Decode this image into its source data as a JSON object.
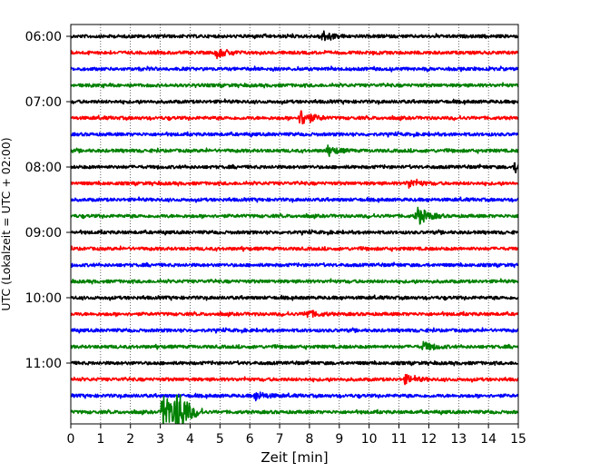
{
  "chart_data": {
    "type": "line",
    "title": "",
    "xlabel": "Zeit  [min]",
    "ylabel": "UTC (Lokalzeit = UTC + 02:00)",
    "xlim": [
      0,
      15
    ],
    "x_ticks": [
      "0",
      "1",
      "2",
      "3",
      "4",
      "5",
      "6",
      "7",
      "8",
      "9",
      "10",
      "11",
      "12",
      "13",
      "14",
      "15"
    ],
    "y_ticks": [
      "06:00",
      "07:00",
      "08:00",
      "09:00",
      "10:00",
      "11:00"
    ],
    "grid": "vertical dotted lines at each minute",
    "colors": [
      "#000000",
      "#ff0000",
      "#0000ff",
      "#008000"
    ],
    "trace_interval_minutes": 15,
    "series": [
      {
        "start": "06:00",
        "color": "#000000",
        "events": [
          {
            "t": 8.4,
            "amp": 1.8
          }
        ]
      },
      {
        "start": "06:15",
        "color": "#ff0000",
        "events": [
          {
            "t": 4.9,
            "amp": 1.6
          }
        ]
      },
      {
        "start": "06:30",
        "color": "#0000ff",
        "events": []
      },
      {
        "start": "06:45",
        "color": "#008000",
        "events": []
      },
      {
        "start": "07:00",
        "color": "#000000",
        "events": []
      },
      {
        "start": "07:15",
        "color": "#ff0000",
        "events": [
          {
            "t": 7.7,
            "amp": 3.2
          }
        ]
      },
      {
        "start": "07:30",
        "color": "#0000ff",
        "events": []
      },
      {
        "start": "07:45",
        "color": "#008000",
        "events": [
          {
            "t": 8.6,
            "amp": 1.5
          }
        ]
      },
      {
        "start": "08:00",
        "color": "#000000",
        "events": [
          {
            "t": 14.9,
            "amp": 2.5
          }
        ]
      },
      {
        "start": "08:15",
        "color": "#ff0000",
        "events": [
          {
            "t": 11.3,
            "amp": 1.5
          }
        ]
      },
      {
        "start": "08:30",
        "color": "#0000ff",
        "events": []
      },
      {
        "start": "08:45",
        "color": "#008000",
        "events": [
          {
            "t": 11.6,
            "amp": 3.5
          }
        ]
      },
      {
        "start": "09:00",
        "color": "#000000",
        "events": []
      },
      {
        "start": "09:15",
        "color": "#ff0000",
        "events": []
      },
      {
        "start": "09:30",
        "color": "#0000ff",
        "events": []
      },
      {
        "start": "09:45",
        "color": "#008000",
        "events": []
      },
      {
        "start": "10:00",
        "color": "#000000",
        "events": []
      },
      {
        "start": "10:15",
        "color": "#ff0000",
        "events": [
          {
            "t": 7.9,
            "amp": 1.4
          }
        ]
      },
      {
        "start": "10:30",
        "color": "#0000ff",
        "events": []
      },
      {
        "start": "10:45",
        "color": "#008000",
        "events": [
          {
            "t": 11.8,
            "amp": 1.6
          }
        ]
      },
      {
        "start": "11:00",
        "color": "#000000",
        "events": []
      },
      {
        "start": "11:15",
        "color": "#ff0000",
        "events": [
          {
            "t": 11.2,
            "amp": 1.5
          }
        ]
      },
      {
        "start": "11:30",
        "color": "#0000ff",
        "events": [
          {
            "t": 6.2,
            "amp": 1.4
          }
        ]
      },
      {
        "start": "11:45",
        "color": "#008000",
        "events": [
          {
            "t": 3.1,
            "amp": 9.0
          },
          {
            "t": 3.55,
            "amp": 9.0
          }
        ]
      }
    ]
  }
}
